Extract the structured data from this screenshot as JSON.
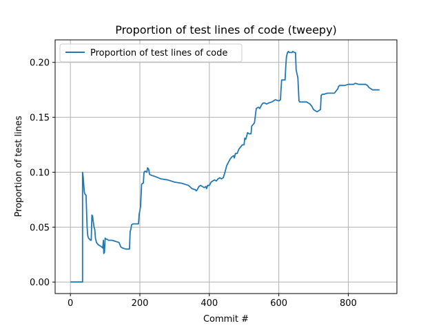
{
  "chart_data": {
    "type": "line",
    "title": "Proportion of test lines of code (tweepy)",
    "xlabel": "Commit #",
    "ylabel": "Proportion of test lines",
    "xlim": [
      -44,
      940
    ],
    "ylim": [
      -0.0105,
      0.2205
    ],
    "xticks": [
      0,
      200,
      400,
      600,
      800
    ],
    "yticks": [
      0.0,
      0.05,
      0.1,
      0.15,
      0.2
    ],
    "xtick_labels": [
      "0",
      "200",
      "400",
      "600",
      "800"
    ],
    "ytick_labels": [
      "0.00",
      "0.05",
      "0.10",
      "0.15",
      "0.20"
    ],
    "grid": true,
    "legend_position": "top-left",
    "series": [
      {
        "name": "Proportion of test lines of code",
        "color": "#1f77b4",
        "x": [
          0,
          35,
          35,
          37,
          40,
          42,
          45,
          48,
          50,
          52,
          55,
          58,
          60,
          62,
          64,
          65,
          68,
          70,
          72,
          75,
          80,
          85,
          90,
          93,
          95,
          96,
          98,
          100,
          102,
          105,
          110,
          120,
          130,
          140,
          145,
          150,
          160,
          170,
          172,
          174,
          176,
          180,
          190,
          196,
          198,
          200,
          202,
          205,
          208,
          210,
          212,
          215,
          220,
          222,
          225,
          228,
          235,
          245,
          260,
          280,
          300,
          320,
          340,
          350,
          360,
          362,
          365,
          370,
          375,
          380,
          385,
          390,
          392,
          395,
          400,
          405,
          410,
          415,
          420,
          425,
          430,
          435,
          440,
          445,
          450,
          455,
          460,
          465,
          470,
          472,
          475,
          480,
          485,
          490,
          495,
          500,
          502,
          505,
          510,
          515,
          520,
          522,
          525,
          530,
          535,
          540,
          542,
          545,
          550,
          552,
          555,
          560,
          565,
          570,
          580,
          590,
          600,
          605,
          606,
          608,
          610,
          615,
          618,
          620,
          622,
          625,
          628,
          630,
          635,
          638,
          640,
          645,
          648,
          650,
          655,
          658,
          660,
          670,
          680,
          690,
          695,
          700,
          705,
          710,
          715,
          720,
          722,
          725,
          730,
          740,
          750,
          760,
          770,
          772,
          775,
          780,
          790,
          800,
          810,
          815,
          820,
          830,
          840,
          850,
          855,
          860,
          870,
          880,
          890
        ],
        "y": [
          0.0,
          0.0,
          0.1,
          0.095,
          0.082,
          0.08,
          0.079,
          0.05,
          0.042,
          0.04,
          0.039,
          0.038,
          0.038,
          0.061,
          0.06,
          0.057,
          0.05,
          0.048,
          0.04,
          0.036,
          0.034,
          0.033,
          0.032,
          0.031,
          0.038,
          0.026,
          0.027,
          0.04,
          0.039,
          0.039,
          0.038,
          0.038,
          0.037,
          0.036,
          0.032,
          0.031,
          0.03,
          0.03,
          0.046,
          0.048,
          0.052,
          0.053,
          0.053,
          0.053,
          0.062,
          0.065,
          0.069,
          0.089,
          0.09,
          0.09,
          0.1,
          0.101,
          0.1,
          0.104,
          0.103,
          0.098,
          0.097,
          0.096,
          0.094,
          0.093,
          0.091,
          0.09,
          0.088,
          0.085,
          0.084,
          0.083,
          0.084,
          0.087,
          0.088,
          0.087,
          0.086,
          0.087,
          0.085,
          0.088,
          0.088,
          0.091,
          0.092,
          0.093,
          0.092,
          0.094,
          0.095,
          0.094,
          0.095,
          0.1,
          0.106,
          0.109,
          0.112,
          0.114,
          0.115,
          0.113,
          0.117,
          0.117,
          0.121,
          0.123,
          0.125,
          0.125,
          0.131,
          0.13,
          0.136,
          0.135,
          0.135,
          0.142,
          0.143,
          0.145,
          0.158,
          0.159,
          0.159,
          0.158,
          0.161,
          0.162,
          0.163,
          0.163,
          0.162,
          0.163,
          0.164,
          0.166,
          0.165,
          0.166,
          0.173,
          0.184,
          0.184,
          0.184,
          0.184,
          0.196,
          0.205,
          0.209,
          0.21,
          0.209,
          0.209,
          0.209,
          0.21,
          0.209,
          0.209,
          0.193,
          0.186,
          0.165,
          0.164,
          0.164,
          0.164,
          0.162,
          0.16,
          0.157,
          0.156,
          0.155,
          0.156,
          0.157,
          0.17,
          0.171,
          0.171,
          0.172,
          0.172,
          0.172,
          0.176,
          0.178,
          0.179,
          0.179,
          0.179,
          0.18,
          0.18,
          0.18,
          0.181,
          0.18,
          0.18,
          0.18,
          0.179,
          0.177,
          0.175,
          0.175,
          0.175
        ]
      }
    ]
  }
}
